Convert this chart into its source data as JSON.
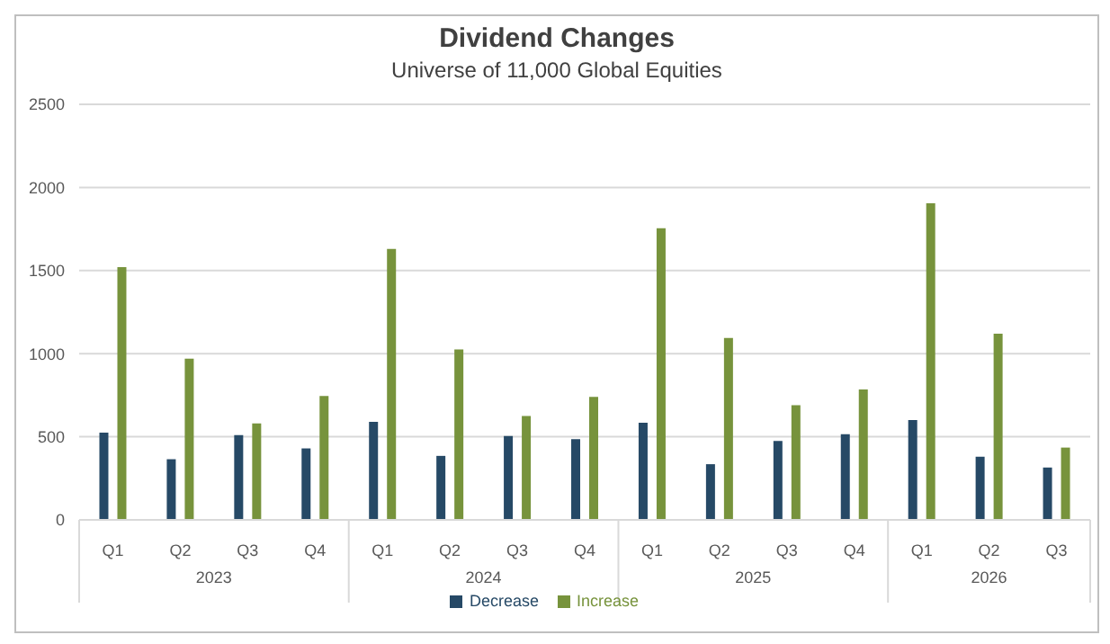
{
  "chart_data": {
    "type": "bar",
    "title": "Dividend Changes",
    "subtitle": "Universe of 11,000 Global Equities",
    "categories": [
      "Q1",
      "Q2",
      "Q3",
      "Q4",
      "Q1",
      "Q2",
      "Q3",
      "Q4",
      "Q1",
      "Q2",
      "Q3",
      "Q4",
      "Q1",
      "Q2",
      "Q3"
    ],
    "annotations": [
      "2023",
      "2024",
      "2025",
      "2026"
    ],
    "series": [
      {
        "name": "Decrease",
        "color": "#264966",
        "values": [
          525,
          365,
          510,
          430,
          590,
          385,
          505,
          485,
          585,
          335,
          475,
          515,
          600,
          380,
          315
        ]
      },
      {
        "name": "Increase",
        "color": "#77933c",
        "values": [
          1520,
          970,
          580,
          745,
          1630,
          1025,
          625,
          740,
          1755,
          1095,
          690,
          785,
          1905,
          1120,
          435
        ]
      }
    ],
    "ylim": [
      0,
      2500
    ],
    "yticks": [
      0,
      500,
      1000,
      1500,
      2000,
      2500
    ],
    "grid": "y",
    "legend": "bottom"
  }
}
